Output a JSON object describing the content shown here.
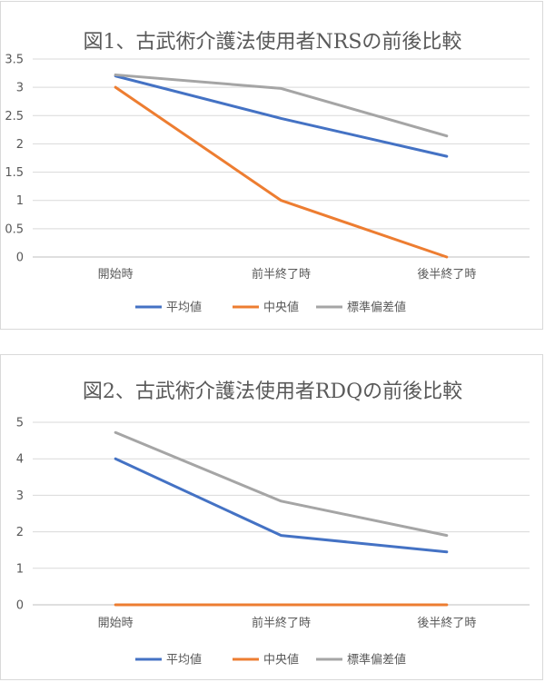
{
  "chart_data": [
    {
      "type": "line",
      "title": "図1、古武術介護法使用者NRSの前後比較",
      "categories": [
        "開始時",
        "前半終了時",
        "後半終了時"
      ],
      "ylim": [
        0,
        3.5
      ],
      "yticks": [
        "0",
        "0.5",
        "1",
        "1.5",
        "2",
        "2.5",
        "3",
        "3.5"
      ],
      "yticks_values": [
        0,
        0.5,
        1,
        1.5,
        2,
        2.5,
        3,
        3.5
      ],
      "grid": true,
      "legend_position": "bottom",
      "series": [
        {
          "name": "平均値",
          "color": "#4472c4",
          "values": [
            3.2,
            2.45,
            1.78
          ]
        },
        {
          "name": "中央値",
          "color": "#ed7d31",
          "values": [
            3.0,
            1.0,
            0.0
          ]
        },
        {
          "name": "標準偏差値",
          "color": "#a5a5a5",
          "values": [
            3.22,
            2.98,
            2.14
          ]
        }
      ]
    },
    {
      "type": "line",
      "title": "図2、古武術介護法使用者RDQの前後比較",
      "categories": [
        "開始時",
        "前半終了時",
        "後半終了時"
      ],
      "ylim": [
        0,
        5
      ],
      "yticks": [
        "0",
        "1",
        "2",
        "3",
        "4",
        "5"
      ],
      "yticks_values": [
        0,
        1,
        2,
        3,
        4,
        5
      ],
      "grid": true,
      "legend_position": "bottom",
      "series": [
        {
          "name": "平均値",
          "color": "#4472c4",
          "values": [
            4.0,
            1.9,
            1.45
          ]
        },
        {
          "name": "中央値",
          "color": "#ed7d31",
          "values": [
            0.0,
            0.0,
            0.0
          ]
        },
        {
          "name": "標準偏差値",
          "color": "#a5a5a5",
          "values": [
            4.72,
            2.84,
            1.9
          ]
        }
      ]
    }
  ]
}
